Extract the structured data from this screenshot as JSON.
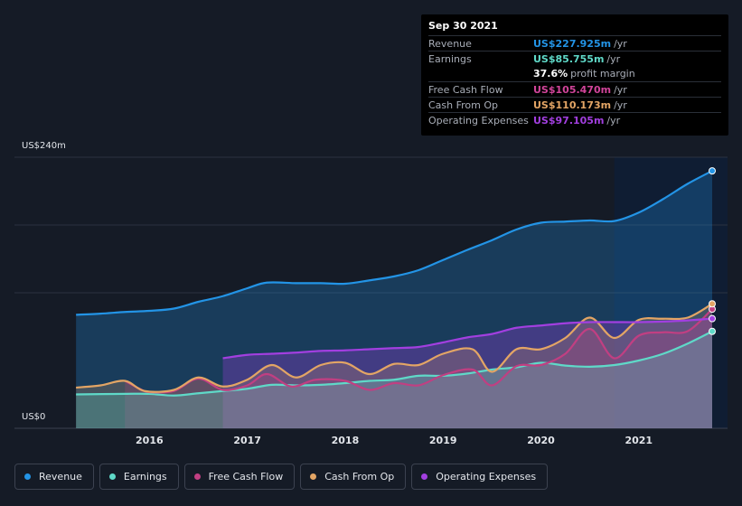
{
  "chart_data": {
    "type": "area",
    "ylabel_top": "US$240m",
    "ylabel_bottom": "US$0",
    "ylim": [
      0,
      240
    ],
    "x_ticks": [
      {
        "value": 2016,
        "label": "2016"
      },
      {
        "value": 2017,
        "label": "2017"
      },
      {
        "value": 2018,
        "label": "2018"
      },
      {
        "value": 2019,
        "label": "2019"
      },
      {
        "value": 2020,
        "label": "2020"
      },
      {
        "value": 2021,
        "label": "2021"
      }
    ],
    "xlim": [
      2014.75,
      2021.75
    ],
    "forecast_start": 2020.75,
    "series": [
      {
        "name": "Revenue",
        "color": "#2394e6",
        "x": [
          2015.25,
          2015.5,
          2015.75,
          2016.0,
          2016.25,
          2016.5,
          2016.75,
          2017.0,
          2017.2,
          2017.5,
          2017.75,
          2018.0,
          2018.25,
          2018.5,
          2018.75,
          2019.0,
          2019.25,
          2019.5,
          2019.75,
          2020.0,
          2020.25,
          2020.5,
          2020.75,
          2021.0,
          2021.25,
          2021.5,
          2021.75
        ],
        "values": [
          100.5,
          101.5,
          103,
          104,
          106,
          112,
          117,
          124,
          129,
          128.5,
          128.5,
          128,
          131,
          134.5,
          140,
          149,
          158,
          166.5,
          176,
          182,
          183,
          184,
          183.5,
          191,
          203,
          216.5,
          227.9
        ]
      },
      {
        "name": "Earnings",
        "color": "#5fd9c8",
        "x": [
          2015.25,
          2015.75,
          2016.0,
          2016.25,
          2016.5,
          2016.75,
          2017.0,
          2017.25,
          2017.5,
          2017.75,
          2018.0,
          2018.25,
          2018.5,
          2018.75,
          2019.0,
          2019.25,
          2019.5,
          2019.75,
          2020.0,
          2020.25,
          2020.5,
          2020.75,
          2021.0,
          2021.25,
          2021.5,
          2021.75
        ],
        "values": [
          30,
          30.5,
          30.5,
          29,
          31,
          33,
          35,
          38.5,
          38,
          38.5,
          40,
          42,
          43,
          46.5,
          46.5,
          48.5,
          52,
          54,
          58,
          55.5,
          54.5,
          56,
          60,
          66,
          75,
          85.8
        ]
      },
      {
        "name": "Free Cash Flow",
        "color": "#c13f82",
        "x": [
          2015.75,
          2015.9,
          2016.0,
          2016.25,
          2016.5,
          2016.75,
          2017.0,
          2017.2,
          2017.45,
          2017.7,
          2018.0,
          2018.25,
          2018.5,
          2018.75,
          2019.0,
          2019.3,
          2019.5,
          2019.75,
          2020.0,
          2020.25,
          2020.5,
          2020.75,
          2021.0,
          2021.25,
          2021.5,
          2021.75
        ],
        "values": [
          42,
          35,
          32,
          33,
          44,
          34,
          38,
          48,
          37,
          43,
          42,
          34,
          40,
          38,
          47,
          52,
          38,
          55,
          56,
          66,
          88,
          62,
          82,
          85,
          86,
          105.5
        ]
      },
      {
        "name": "Cash From Op",
        "color": "#e3a565",
        "x": [
          2015.25,
          2015.5,
          2015.75,
          2015.95,
          2016.25,
          2016.5,
          2016.75,
          2017.0,
          2017.25,
          2017.5,
          2017.75,
          2018.0,
          2018.25,
          2018.5,
          2018.75,
          2019.0,
          2019.3,
          2019.5,
          2019.75,
          2020.0,
          2020.25,
          2020.5,
          2020.75,
          2021.0,
          2021.25,
          2021.5,
          2021.75
        ],
        "values": [
          36,
          38,
          42,
          33,
          34,
          45,
          37,
          43,
          56,
          45,
          56,
          58,
          48,
          57,
          56,
          66,
          70,
          50,
          70,
          70,
          80,
          98,
          80,
          96,
          97,
          98,
          110.2
        ]
      },
      {
        "name": "Operating Expenses",
        "color": "#a23fe0",
        "x": [
          2016.75,
          2017.0,
          2017.25,
          2017.5,
          2017.75,
          2018.0,
          2018.25,
          2018.5,
          2018.75,
          2019.0,
          2019.25,
          2019.5,
          2019.75,
          2020.0,
          2020.25,
          2020.5,
          2020.75,
          2021.0,
          2021.25,
          2021.5,
          2021.75
        ],
        "values": [
          62,
          65,
          66,
          67,
          68.5,
          69,
          70,
          71,
          72,
          76,
          80.5,
          83.5,
          89,
          91,
          93,
          94,
          94,
          94,
          94.5,
          95.5,
          97.1
        ]
      }
    ]
  },
  "tooltip": {
    "date": "Sep 30 2021",
    "revenue_label": "Revenue",
    "revenue_value": "US$227.925m",
    "revenue_unit": "/yr",
    "earnings_label": "Earnings",
    "earnings_value": "US$85.755m",
    "earnings_unit": "/yr",
    "margin_value": "37.6%",
    "margin_label": "profit margin",
    "fcf_label": "Free Cash Flow",
    "fcf_value": "US$105.470m",
    "fcf_unit": "/yr",
    "cfo_label": "Cash From Op",
    "cfo_value": "US$110.173m",
    "cfo_unit": "/yr",
    "opex_label": "Operating Expenses",
    "opex_value": "US$97.105m",
    "opex_unit": "/yr"
  },
  "legend": [
    {
      "label": "Revenue",
      "color": "#2394e6"
    },
    {
      "label": "Earnings",
      "color": "#5fd9c8"
    },
    {
      "label": "Free Cash Flow",
      "color": "#c13f82"
    },
    {
      "label": "Cash From Op",
      "color": "#e3a565"
    },
    {
      "label": "Operating Expenses",
      "color": "#a23fe0"
    }
  ]
}
